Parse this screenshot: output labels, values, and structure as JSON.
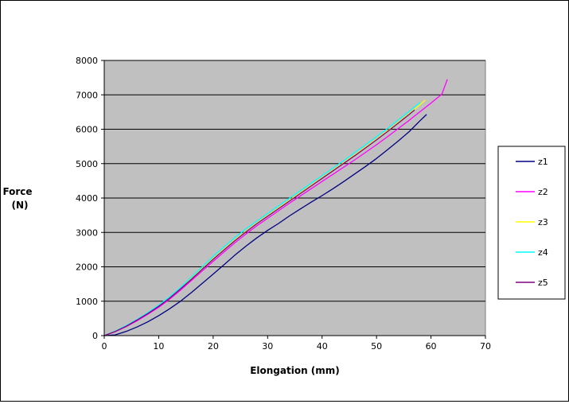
{
  "chart_data": {
    "type": "line",
    "title": "",
    "xlabel": "Elongation  (mm)",
    "ylabel": "Force (N)",
    "ylabel_lines": [
      "Force",
      "(N)"
    ],
    "xlim": [
      0,
      70
    ],
    "ylim": [
      0,
      8000
    ],
    "xticks": [
      0,
      10,
      20,
      30,
      40,
      50,
      60,
      70
    ],
    "yticks": [
      0,
      1000,
      2000,
      3000,
      4000,
      5000,
      6000,
      7000,
      8000
    ],
    "grid": true,
    "legend_position": "right",
    "colors": {
      "plot_bg": "#c0c0c0",
      "grid": "#000000"
    },
    "series": [
      {
        "name": "z1",
        "color": "#000080",
        "x": [
          0,
          2,
          4,
          6,
          8,
          10,
          12,
          14,
          16,
          18,
          20,
          22,
          24,
          26,
          28,
          30,
          32,
          34,
          36,
          38,
          40,
          42,
          44,
          46,
          48,
          50,
          52,
          54,
          56,
          58,
          59.2
        ],
        "y": [
          0,
          20,
          120,
          250,
          400,
          580,
          780,
          1000,
          1250,
          1520,
          1790,
          2060,
          2340,
          2600,
          2840,
          3060,
          3260,
          3480,
          3680,
          3880,
          4070,
          4270,
          4480,
          4700,
          4920,
          5150,
          5400,
          5660,
          5930,
          6250,
          6430
        ]
      },
      {
        "name": "z2",
        "color": "#ff00ff",
        "x": [
          0,
          2,
          4,
          6,
          8,
          10,
          12,
          14,
          16,
          18,
          20,
          22,
          24,
          26,
          28,
          30,
          32,
          34,
          36,
          38,
          40,
          42,
          44,
          46,
          48,
          50,
          52,
          54,
          56,
          58,
          60,
          62,
          63
        ],
        "y": [
          0,
          110,
          260,
          430,
          620,
          820,
          1060,
          1320,
          1600,
          1880,
          2160,
          2430,
          2700,
          2950,
          3190,
          3410,
          3630,
          3850,
          4060,
          4270,
          4480,
          4690,
          4900,
          5110,
          5330,
          5550,
          5780,
          6020,
          6260,
          6510,
          6760,
          7020,
          7450
        ]
      },
      {
        "name": "z3",
        "color": "#ffff00",
        "x": [
          0,
          2,
          4,
          6,
          8,
          10,
          12,
          14,
          16,
          18,
          20,
          22,
          24,
          26,
          28,
          30,
          32,
          34,
          36,
          38,
          40,
          42,
          44,
          46,
          48,
          50,
          52,
          54,
          56,
          58,
          59
        ],
        "y": [
          0,
          120,
          280,
          460,
          650,
          860,
          1100,
          1370,
          1660,
          1950,
          2240,
          2510,
          2780,
          3030,
          3270,
          3490,
          3710,
          3930,
          4150,
          4370,
          4590,
          4810,
          5030,
          5250,
          5480,
          5710,
          5950,
          6200,
          6450,
          6720,
          6850
        ]
      },
      {
        "name": "z4",
        "color": "#00ffff",
        "x": [
          0,
          2,
          4,
          6,
          8,
          10,
          12,
          14,
          16,
          18,
          20,
          22,
          24,
          26,
          28,
          30,
          32,
          34,
          36,
          38,
          40,
          42,
          44,
          46,
          48,
          50,
          52,
          54,
          56,
          58
        ],
        "y": [
          0,
          130,
          290,
          470,
          670,
          880,
          1130,
          1400,
          1700,
          2000,
          2300,
          2580,
          2850,
          3100,
          3330,
          3550,
          3770,
          3990,
          4210,
          4430,
          4650,
          4870,
          5090,
          5320,
          5550,
          5780,
          6020,
          6270,
          6520,
          6780
        ]
      },
      {
        "name": "z5",
        "color": "#800080",
        "x": [
          0,
          2,
          4,
          6,
          8,
          10,
          12,
          14,
          16,
          18,
          20,
          22,
          24,
          26,
          28,
          30,
          32,
          34,
          36,
          38,
          40,
          42,
          44,
          46,
          48,
          50,
          52,
          54,
          56,
          57
        ],
        "y": [
          0,
          120,
          270,
          450,
          640,
          850,
          1090,
          1360,
          1640,
          1930,
          2220,
          2490,
          2760,
          3010,
          3250,
          3470,
          3690,
          3910,
          4130,
          4350,
          4570,
          4790,
          5010,
          5230,
          5460,
          5690,
          5930,
          6180,
          6430,
          6560
        ]
      }
    ]
  }
}
